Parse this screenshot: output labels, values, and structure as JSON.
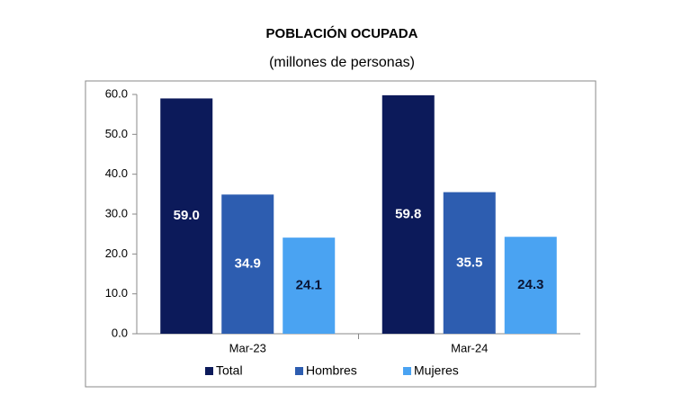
{
  "chart_data": {
    "type": "bar",
    "title": "POBLACIÓN OCUPADA",
    "subtitle": "(millones de personas)",
    "categories": [
      "Mar-23",
      "Mar-24"
    ],
    "series": [
      {
        "name": "Total",
        "color": "#0c1a5a",
        "values": [
          59.0,
          59.8
        ],
        "value_labels": [
          "59.0",
          "59.8"
        ]
      },
      {
        "name": "Hombres",
        "color": "#2d5db0",
        "values": [
          34.9,
          35.5
        ],
        "value_labels": [
          "34.9",
          "35.5"
        ]
      },
      {
        "name": "Mujeres",
        "color": "#4aa3f2",
        "values": [
          24.1,
          24.3
        ],
        "value_labels": [
          "24.1",
          "24.3"
        ]
      }
    ],
    "ylim": [
      0,
      60
    ],
    "yticks": [
      {
        "value": 0,
        "label": "0.0"
      },
      {
        "value": 10,
        "label": "10.0"
      },
      {
        "value": 20,
        "label": "20.0"
      },
      {
        "value": 30,
        "label": "30.0"
      },
      {
        "value": 40,
        "label": "40.0"
      },
      {
        "value": 50,
        "label": "50.0"
      },
      {
        "value": 60,
        "label": "60.0"
      }
    ],
    "legend": "bottom"
  }
}
